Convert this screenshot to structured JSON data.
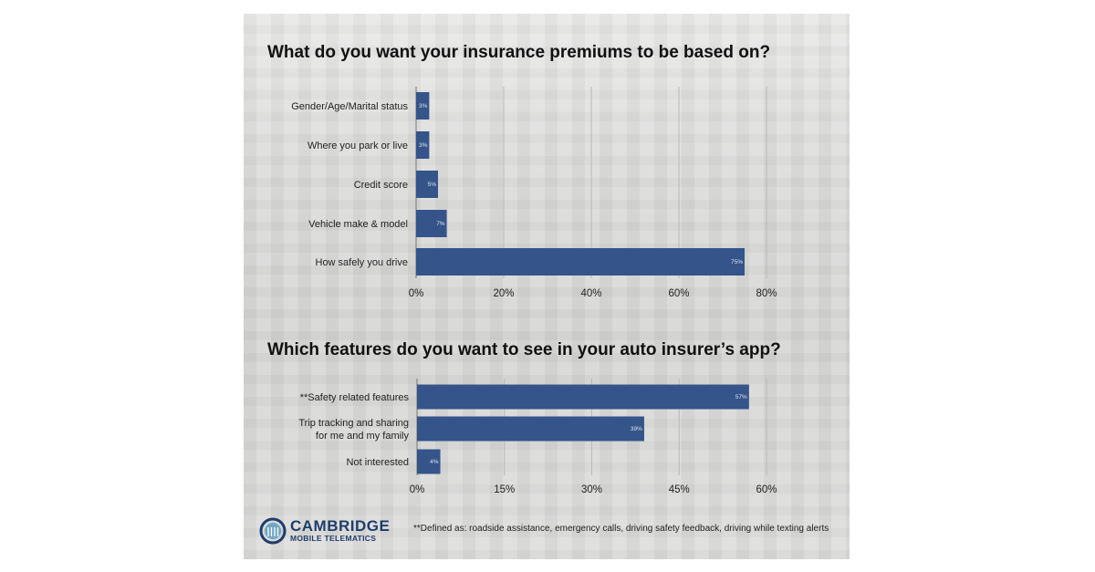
{
  "chart_data": [
    {
      "type": "bar",
      "orientation": "horizontal",
      "title": "What do you want your insurance premiums to be based on?",
      "categories": [
        "Gender/Age/Marital status",
        "Where you park or live",
        "Credit score",
        "Vehicle make & model",
        "How safely you drive"
      ],
      "values": [
        3,
        3,
        5,
        7,
        75
      ],
      "value_labels": [
        "3%",
        "3%",
        "5%",
        "7%",
        "75%"
      ],
      "xticks": [
        "0%",
        "20%",
        "40%",
        "60%",
        "80%"
      ],
      "xlim": [
        0,
        80
      ],
      "grid": true,
      "bar_color": "#34548a"
    },
    {
      "type": "bar",
      "orientation": "horizontal",
      "title": "Which features do you want to see in your auto insurer’s app?",
      "categories": [
        "**Safety related features",
        [
          "Trip tracking and sharing",
          "for me and my family"
        ],
        "Not interested"
      ],
      "values": [
        57,
        39,
        4
      ],
      "value_labels": [
        "57%",
        "39%",
        "4%"
      ],
      "xticks": [
        "0%",
        "15%",
        "30%",
        "45%",
        "60%"
      ],
      "xlim": [
        0,
        60
      ],
      "grid": true,
      "bar_color": "#34548a"
    }
  ],
  "footnote": "**Defined as: roadside assistance, emergency calls, driving safety feedback, driving while texting alerts",
  "logo": {
    "line1": "CAMBRIDGE",
    "line2": "MOBILE TELEMATICS"
  }
}
